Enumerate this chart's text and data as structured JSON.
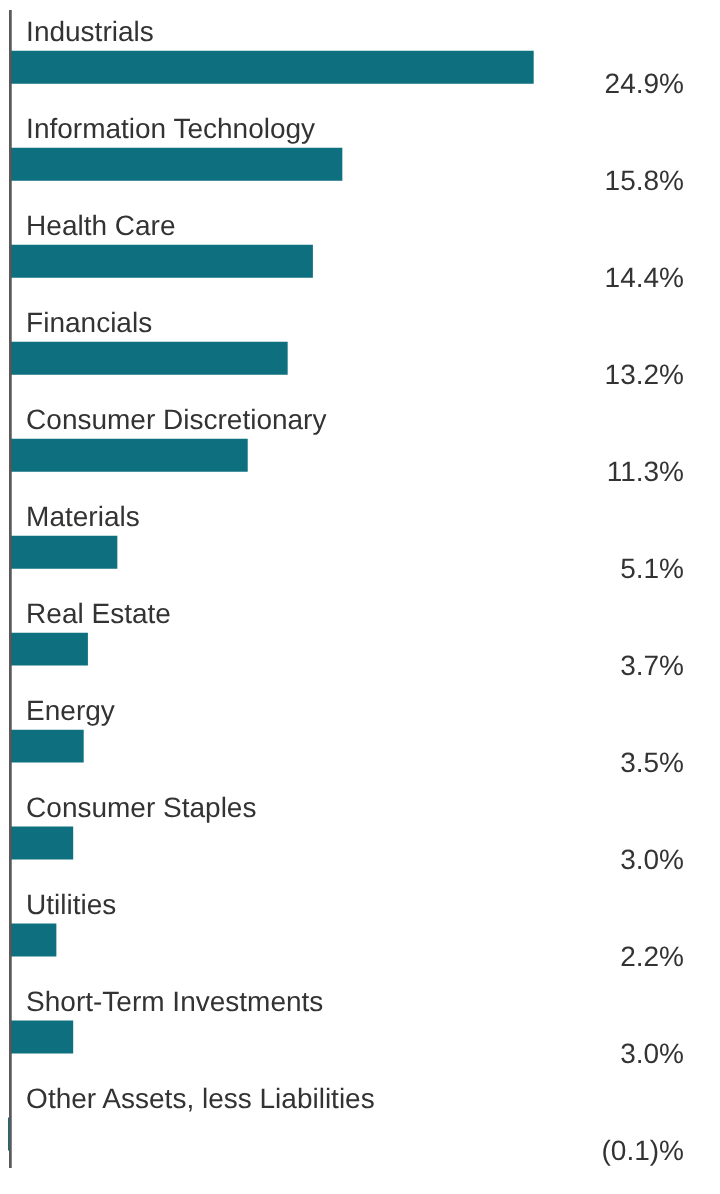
{
  "chart_data": {
    "type": "bar",
    "orientation": "horizontal",
    "color": "#0e6f7e",
    "categories": [
      "Industrials",
      "Information Technology",
      "Health Care",
      "Financials",
      "Consumer Discretionary",
      "Materials",
      "Real Estate",
      "Energy",
      "Consumer Staples",
      "Utilities",
      "Short-Term Investments",
      "Other Assets, less Liabilities"
    ],
    "values": [
      24.9,
      15.8,
      14.4,
      13.2,
      11.3,
      5.1,
      3.7,
      3.5,
      3.0,
      2.2,
      3.0,
      -0.1
    ],
    "value_labels": [
      "24.9%",
      "15.8%",
      "14.4%",
      "13.2%",
      "11.3%",
      "5.1%",
      "3.7%",
      "3.5%",
      "3.0%",
      "2.2%",
      "3.0%",
      "(0.1)%"
    ]
  }
}
